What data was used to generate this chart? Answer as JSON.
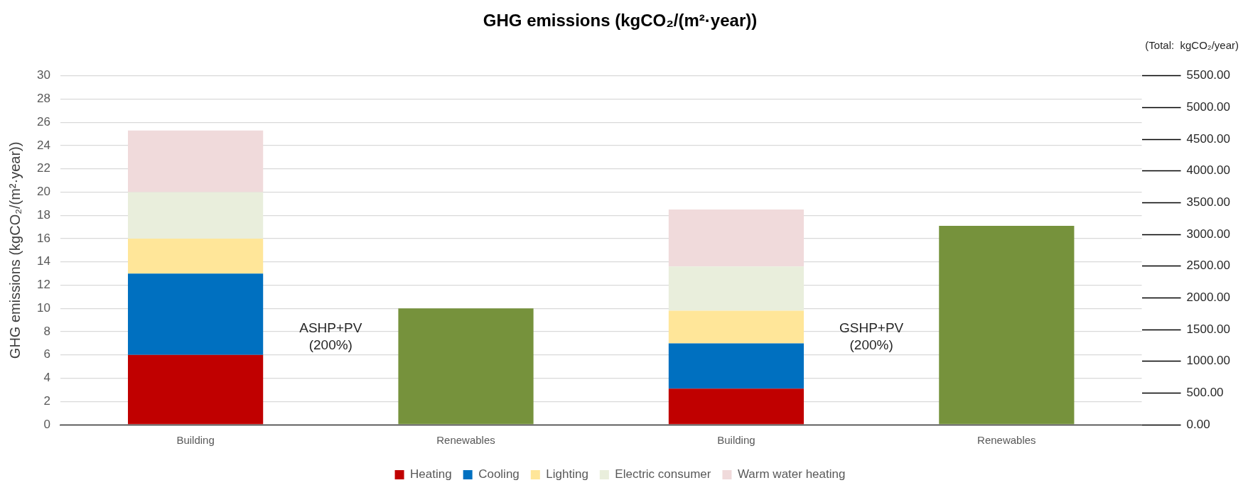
{
  "chart_data": {
    "type": "bar",
    "title": "GHG emissions (kgCO₂/(m²·year))",
    "ylabel": "GHG emissions (kgCO₂/(m²·year))",
    "y2label": "(Total:  kgCO₂/year)",
    "categories": [
      "Building",
      "Renewables",
      "Building",
      "Renewables"
    ],
    "stacked": true,
    "series": [
      {
        "name": "Heating",
        "color": "#c00000",
        "values": [
          6,
          null,
          3.1,
          null
        ]
      },
      {
        "name": "Cooling",
        "color": "#0070c0",
        "values": [
          7,
          null,
          3.9,
          null
        ]
      },
      {
        "name": "Lighting",
        "color": "#ffe699",
        "values": [
          3,
          null,
          2.8,
          null
        ]
      },
      {
        "name": "Electric consumer",
        "color": "#e9eedc",
        "values": [
          4,
          null,
          3.8,
          null
        ]
      },
      {
        "name": "Warm water heating",
        "color": "#f0dadb",
        "values": [
          5.3,
          null,
          4.9,
          null
        ]
      },
      {
        "color": "#76923c",
        "values": [
          null,
          10,
          null,
          17.1
        ]
      }
    ],
    "ylim": [
      0,
      30
    ],
    "yticks": [
      0,
      2,
      4,
      6,
      8,
      10,
      12,
      14,
      16,
      18,
      20,
      22,
      24,
      26,
      28,
      30
    ],
    "y2lim": [
      0,
      5500
    ],
    "y2ticks": [
      {
        "value": 0,
        "label": "0.00"
      },
      {
        "value": 500,
        "label": "500.00"
      },
      {
        "value": 1000,
        "label": "1000.00"
      },
      {
        "value": 1500,
        "label": "1500.00"
      },
      {
        "value": 2000,
        "label": "2000.00"
      },
      {
        "value": 2500,
        "label": "2500.00"
      },
      {
        "value": 3000,
        "label": "3000.00"
      },
      {
        "value": 3500,
        "label": "3500.00"
      },
      {
        "value": 4000,
        "label": "4000.00"
      },
      {
        "value": 4500,
        "label": "4500.00"
      },
      {
        "value": 5000,
        "label": "5000.00"
      },
      {
        "value": 5500,
        "label": "5500.00"
      }
    ],
    "annotations": [
      "ASHP+PV\n(200%)",
      "GSHP+PV\n(200%)"
    ],
    "grid": "y",
    "legend": "bottom"
  }
}
